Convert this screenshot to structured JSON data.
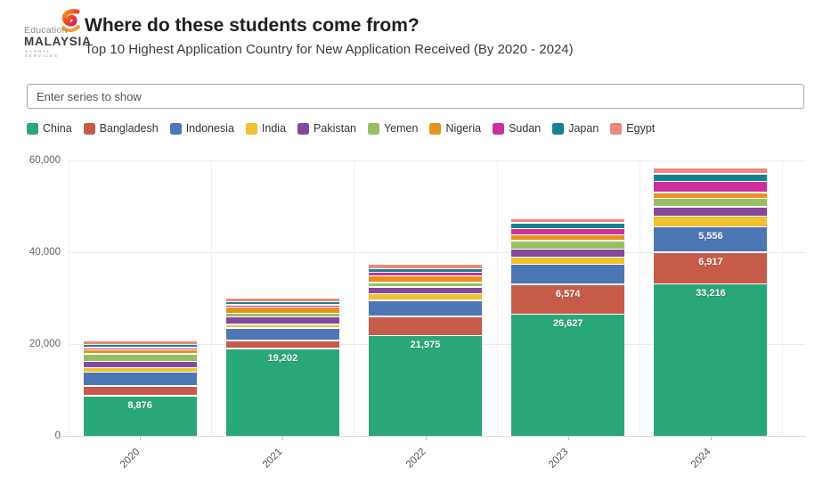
{
  "header": {
    "title": "Where do these students come from?",
    "subtitle": "Top 10 Highest Application Country for New Application Received (By 2020 - 2024)",
    "logo": {
      "education": "Education",
      "malaysia": "MALAYSIA",
      "tagline": "GLOBAL SERVICES"
    }
  },
  "search": {
    "placeholder": "Enter series to show"
  },
  "chart_data": {
    "type": "bar",
    "stacked": true,
    "title": "Where do these students come from?",
    "subtitle": "Top 10 Highest Application Country for New Application Received (By 2020 - 2024)",
    "legend_position": "top",
    "grid": true,
    "ylim": [
      0,
      60000
    ],
    "y_ticks": [
      0,
      20000,
      40000,
      60000
    ],
    "y_tick_labels": [
      "0",
      "20,000",
      "40,000",
      "60,000"
    ],
    "categories": [
      "2020",
      "2021",
      "2022",
      "2023",
      "2024"
    ],
    "value_label_min": 5000,
    "shown_value_labels": [
      "8,876",
      "19,202",
      "21,975",
      "26,627",
      "6,574",
      "33,216",
      "6,917",
      "5,556"
    ],
    "series": [
      {
        "name": "China",
        "color": "#2aa779",
        "values": [
          8876,
          19202,
          21975,
          26627,
          33216
        ]
      },
      {
        "name": "Bangladesh",
        "color": "#c75b4a",
        "values": [
          2100,
          1750,
          4200,
          6574,
          6917
        ]
      },
      {
        "name": "Indonesia",
        "color": "#4d76b4",
        "values": [
          3100,
          2700,
          3500,
          4300,
          5556
        ]
      },
      {
        "name": "India",
        "color": "#f0c02e",
        "values": [
          950,
          800,
          1450,
          1600,
          2300
        ]
      },
      {
        "name": "Pakistan",
        "color": "#84489c",
        "values": [
          1300,
          1600,
          1500,
          1700,
          2100
        ]
      },
      {
        "name": "Yemen",
        "color": "#97bf61",
        "values": [
          1650,
          750,
          950,
          1850,
          1850
        ]
      },
      {
        "name": "Nigeria",
        "color": "#e5921f",
        "values": [
          900,
          1450,
          1450,
          1300,
          1200
        ]
      },
      {
        "name": "Sudan",
        "color": "#cc2f9f",
        "values": [
          500,
          400,
          750,
          1300,
          2400
        ]
      },
      {
        "name": "Japan",
        "color": "#17828f",
        "values": [
          650,
          700,
          800,
          1300,
          1700
        ]
      },
      {
        "name": "Egypt",
        "color": "#ef8878",
        "values": [
          900,
          900,
          950,
          1000,
          1350
        ]
      }
    ]
  }
}
